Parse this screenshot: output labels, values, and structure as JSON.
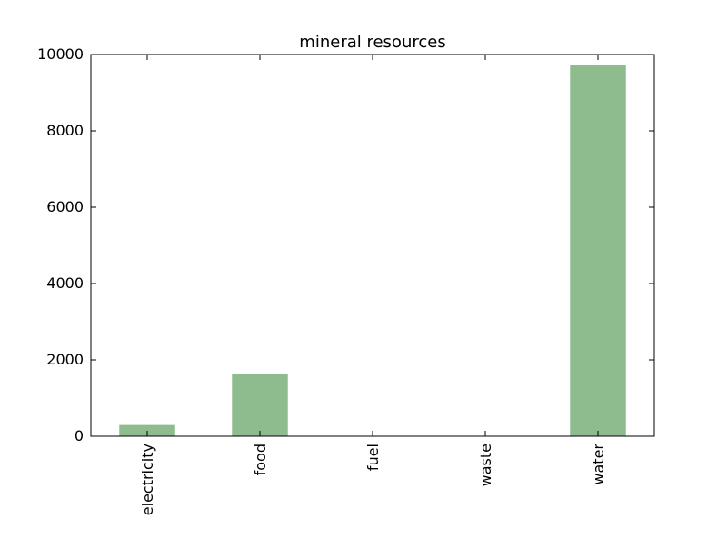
{
  "colors": {
    "bar": "#8fbc8f",
    "axis": "#000000",
    "background": "#ffffff"
  },
  "chart_data": {
    "type": "bar",
    "title": "mineral resources",
    "xlabel": "",
    "ylabel": "",
    "categories": [
      "electricity",
      "food",
      "fuel",
      "waste",
      "water"
    ],
    "values": [
      300,
      1650,
      0,
      0,
      9720
    ],
    "ylim": [
      0,
      10000
    ],
    "yticks": [
      0,
      2000,
      4000,
      6000,
      8000,
      10000
    ],
    "ytick_labels": [
      "0",
      "2000",
      "4000",
      "6000",
      "8000",
      "10000"
    ],
    "grid": false,
    "legend": "none"
  }
}
